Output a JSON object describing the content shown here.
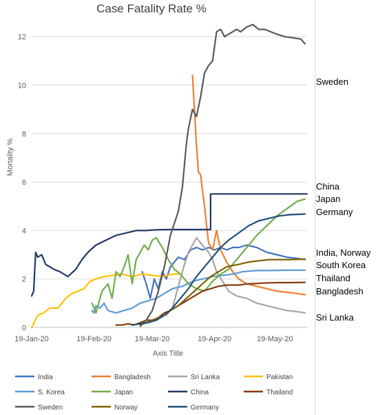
{
  "chart_data": {
    "type": "line",
    "title": "Case Fatality Rate %",
    "xlabel": "Axis Title",
    "ylabel": "Mortality %",
    "xlim": [
      "2020-01-19",
      "2020-06-04"
    ],
    "ylim": [
      0,
      13
    ],
    "yticks": [
      0,
      2,
      4,
      6,
      8,
      10,
      12
    ],
    "xticks": [
      "2020-01-19",
      "2020-02-19",
      "2020-03-19",
      "2020-04-19",
      "2020-05-19"
    ],
    "xtick_labels": [
      "19-Jan-20",
      "19-Feb-20",
      "19-Mar-20",
      "19-Apr-20",
      "19-May-20"
    ],
    "grid": "horizontal",
    "legend_position": "bottom",
    "annotations": [
      "Sweden",
      "China",
      "Japan",
      "Germany",
      "India, Norway",
      "South Korea",
      "Thailand",
      "Bangladesh",
      "Sri Lanka"
    ],
    "series": [
      {
        "name": "India",
        "color": "#4472C4",
        "x": [
          "2020-03-14",
          "2020-03-16",
          "2020-03-18",
          "2020-03-20",
          "2020-03-22",
          "2020-03-24",
          "2020-03-26",
          "2020-03-28",
          "2020-03-30",
          "2020-04-01",
          "2020-04-04",
          "2020-04-07",
          "2020-04-10",
          "2020-04-13",
          "2020-04-16",
          "2020-04-19",
          "2020-04-22",
          "2020-04-25",
          "2020-04-28",
          "2020-05-01",
          "2020-05-05",
          "2020-05-10",
          "2020-05-15",
          "2020-05-20",
          "2020-05-25",
          "2020-05-30",
          "2020-06-03"
        ],
        "y": [
          2.3,
          1.8,
          1.2,
          2.0,
          1.6,
          2.3,
          2.0,
          2.5,
          2.7,
          2.9,
          2.8,
          3.2,
          3.3,
          3.2,
          3.3,
          3.2,
          3.3,
          3.2,
          3.3,
          3.3,
          3.4,
          3.3,
          3.1,
          3.0,
          2.9,
          2.85,
          2.8
        ]
      },
      {
        "name": "Bangladesh",
        "color": "#ED7D31",
        "x": [
          "2020-04-08",
          "2020-04-09",
          "2020-04-10",
          "2020-04-11",
          "2020-04-12",
          "2020-04-14",
          "2020-04-16",
          "2020-04-18",
          "2020-04-20",
          "2020-04-22",
          "2020-04-25",
          "2020-04-28",
          "2020-05-01",
          "2020-05-05",
          "2020-05-10",
          "2020-05-15",
          "2020-05-20",
          "2020-05-25",
          "2020-05-30",
          "2020-06-03"
        ],
        "y": [
          10.4,
          9.0,
          7.5,
          6.4,
          6.3,
          5.0,
          3.5,
          3.2,
          4.0,
          3.2,
          2.7,
          2.3,
          2.0,
          1.8,
          1.7,
          1.6,
          1.5,
          1.45,
          1.4,
          1.35
        ]
      },
      {
        "name": "Sri Lanka",
        "color": "#A5A5A5",
        "x": [
          "2020-03-26",
          "2020-03-29",
          "2020-04-01",
          "2020-04-04",
          "2020-04-06",
          "2020-04-08",
          "2020-04-10",
          "2020-04-12",
          "2020-04-14",
          "2020-04-16",
          "2020-04-18",
          "2020-04-20",
          "2020-04-23",
          "2020-04-26",
          "2020-04-30",
          "2020-05-05",
          "2020-05-10",
          "2020-05-15",
          "2020-05-20",
          "2020-05-25",
          "2020-05-30",
          "2020-06-03"
        ],
        "y": [
          0.5,
          0.8,
          1.7,
          2.6,
          3.1,
          3.4,
          3.7,
          3.5,
          3.3,
          3.1,
          2.8,
          2.3,
          1.9,
          1.5,
          1.3,
          1.2,
          1.0,
          0.9,
          0.8,
          0.7,
          0.65,
          0.6
        ]
      },
      {
        "name": "Pakistan",
        "color": "#FFC000",
        "x": [
          "2020-01-19",
          "2020-01-22",
          "2020-01-25",
          "2020-01-28",
          "2020-02-01",
          "2020-02-05",
          "2020-02-08",
          "2020-02-11",
          "2020-02-14",
          "2020-02-17",
          "2020-02-20",
          "2020-02-24",
          "2020-02-28",
          "2020-03-04",
          "2020-03-09",
          "2020-03-14",
          "2020-03-19",
          "2020-03-24",
          "2020-03-29",
          "2020-04-01"
        ],
        "y": [
          0,
          0.5,
          0.6,
          0.8,
          0.8,
          1.2,
          1.4,
          1.5,
          1.6,
          1.9,
          2.0,
          2.1,
          2.15,
          2.2,
          2.1,
          2.2,
          2.15,
          2.1,
          2.2,
          2.2
        ]
      },
      {
        "name": "S. Korea",
        "color": "#5B9BD5",
        "x": [
          "2020-02-18",
          "2020-02-19",
          "2020-02-20",
          "2020-02-22",
          "2020-02-24",
          "2020-02-26",
          "2020-03-01",
          "2020-03-05",
          "2020-03-09",
          "2020-03-13",
          "2020-03-17",
          "2020-03-21",
          "2020-03-25",
          "2020-03-29",
          "2020-04-03",
          "2020-04-08",
          "2020-04-13",
          "2020-04-18",
          "2020-04-23",
          "2020-04-28",
          "2020-05-03",
          "2020-05-10",
          "2020-05-17",
          "2020-05-24",
          "2020-05-31",
          "2020-06-03"
        ],
        "y": [
          0.7,
          0.6,
          0.9,
          0.8,
          1.0,
          0.7,
          0.6,
          0.7,
          0.8,
          1.0,
          1.1,
          1.2,
          1.4,
          1.6,
          1.7,
          1.9,
          2.0,
          2.1,
          2.15,
          2.2,
          2.3,
          2.35,
          2.35,
          2.36,
          2.36,
          2.36
        ]
      },
      {
        "name": "Japan",
        "color": "#70AD47",
        "x": [
          "2020-02-18",
          "2020-02-20",
          "2020-02-23",
          "2020-02-26",
          "2020-02-28",
          "2020-03-01",
          "2020-03-03",
          "2020-03-05",
          "2020-03-07",
          "2020-03-09",
          "2020-03-11",
          "2020-03-13",
          "2020-03-15",
          "2020-03-17",
          "2020-03-19",
          "2020-03-21",
          "2020-03-24",
          "2020-03-27",
          "2020-03-30",
          "2020-04-02",
          "2020-04-06",
          "2020-04-10",
          "2020-04-14",
          "2020-04-18",
          "2020-04-22",
          "2020-04-26",
          "2020-04-30",
          "2020-05-05",
          "2020-05-10",
          "2020-05-15",
          "2020-05-20",
          "2020-05-25",
          "2020-05-30",
          "2020-06-03"
        ],
        "y": [
          1.0,
          0.6,
          1.5,
          1.8,
          1.2,
          2.3,
          2.1,
          2.5,
          3.0,
          1.8,
          2.8,
          3.1,
          3.4,
          3.2,
          3.6,
          3.7,
          3.3,
          2.8,
          2.4,
          2.2,
          1.8,
          1.6,
          1.5,
          1.9,
          2.2,
          2.4,
          2.8,
          3.3,
          3.8,
          4.2,
          4.6,
          4.9,
          5.2,
          5.3
        ]
      },
      {
        "name": "China",
        "color": "#203864",
        "x": [
          "2020-01-19",
          "2020-01-20",
          "2020-01-21",
          "2020-01-22",
          "2020-01-24",
          "2020-01-26",
          "2020-01-28",
          "2020-01-30",
          "2020-02-02",
          "2020-02-06",
          "2020-02-10",
          "2020-02-13",
          "2020-02-16",
          "2020-02-20",
          "2020-02-25",
          "2020-03-01",
          "2020-03-06",
          "2020-03-11",
          "2020-03-16",
          "2020-03-21",
          "2020-03-26",
          "2020-04-01",
          "2020-04-06",
          "2020-04-11",
          "2020-04-16",
          "2020-04-17",
          "2020-04-17",
          "2020-04-25",
          "2020-05-05",
          "2020-05-15",
          "2020-05-25",
          "2020-06-04"
        ],
        "y": [
          1.3,
          1.5,
          3.1,
          2.9,
          3.0,
          2.6,
          2.5,
          2.4,
          2.3,
          2.1,
          2.4,
          2.8,
          3.1,
          3.4,
          3.6,
          3.8,
          3.9,
          4.0,
          4.0,
          4.03,
          4.04,
          4.04,
          4.04,
          4.04,
          4.04,
          4.04,
          5.51,
          5.51,
          5.51,
          5.51,
          5.51,
          5.51
        ]
      },
      {
        "name": "Thailand",
        "color": "#843C0C",
        "x": [
          "2020-03-01",
          "2020-03-04",
          "2020-03-07",
          "2020-03-10",
          "2020-03-13",
          "2020-03-16",
          "2020-03-19",
          "2020-03-22",
          "2020-03-25",
          "2020-03-28",
          "2020-04-01",
          "2020-04-05",
          "2020-04-09",
          "2020-04-13",
          "2020-04-17",
          "2020-04-21",
          "2020-04-25",
          "2020-05-01",
          "2020-05-06",
          "2020-05-11",
          "2020-05-16",
          "2020-05-21",
          "2020-05-26",
          "2020-06-03"
        ],
        "y": [
          0.1,
          0.1,
          0.15,
          0.1,
          0.2,
          0.3,
          0.3,
          0.4,
          0.6,
          0.7,
          0.9,
          1.1,
          1.3,
          1.5,
          1.6,
          1.7,
          1.75,
          1.75,
          1.8,
          1.82,
          1.84,
          1.85,
          1.85,
          1.86
        ]
      },
      {
        "name": "Sweden",
        "color": "#595959",
        "x": [
          "2020-03-13",
          "2020-03-16",
          "2020-03-19",
          "2020-03-22",
          "2020-03-25",
          "2020-03-28",
          "2020-04-01",
          "2020-04-03",
          "2020-04-05",
          "2020-04-06",
          "2020-04-08",
          "2020-04-10",
          "2020-04-12",
          "2020-04-14",
          "2020-04-16",
          "2020-04-18",
          "2020-04-20",
          "2020-04-22",
          "2020-04-24",
          "2020-04-26",
          "2020-04-28",
          "2020-04-30",
          "2020-05-02",
          "2020-05-05",
          "2020-05-08",
          "2020-05-11",
          "2020-05-14",
          "2020-05-17",
          "2020-05-20",
          "2020-05-24",
          "2020-05-28",
          "2020-06-01",
          "2020-06-03"
        ],
        "y": [
          0.05,
          0.3,
          0.7,
          1.5,
          2.5,
          3.8,
          4.8,
          5.8,
          7.6,
          8.2,
          9.0,
          8.7,
          9.5,
          10.5,
          10.8,
          11.0,
          12.2,
          12.3,
          12.0,
          12.1,
          12.2,
          12.3,
          12.2,
          12.4,
          12.5,
          12.3,
          12.3,
          12.2,
          12.1,
          12.0,
          11.95,
          11.9,
          11.7
        ]
      },
      {
        "name": "Norway",
        "color": "#7F6000",
        "x": [
          "2020-03-13",
          "2020-03-16",
          "2020-03-19",
          "2020-03-22",
          "2020-03-25",
          "2020-03-28",
          "2020-04-01",
          "2020-04-05",
          "2020-04-09",
          "2020-04-13",
          "2020-04-17",
          "2020-04-21",
          "2020-04-25",
          "2020-05-01",
          "2020-05-06",
          "2020-05-11",
          "2020-05-16",
          "2020-05-21",
          "2020-05-26",
          "2020-06-03"
        ],
        "y": [
          0.1,
          0.2,
          0.3,
          0.4,
          0.5,
          0.7,
          0.9,
          1.2,
          1.5,
          1.8,
          2.1,
          2.3,
          2.5,
          2.6,
          2.7,
          2.75,
          2.8,
          2.8,
          2.8,
          2.82
        ]
      },
      {
        "name": "Germany",
        "color": "#1F4E79",
        "x": [
          "2020-03-09",
          "2020-03-13",
          "2020-03-17",
          "2020-03-21",
          "2020-03-25",
          "2020-03-29",
          "2020-04-02",
          "2020-04-06",
          "2020-04-10",
          "2020-04-14",
          "2020-04-18",
          "2020-04-22",
          "2020-04-26",
          "2020-05-01",
          "2020-05-06",
          "2020-05-11",
          "2020-05-16",
          "2020-05-21",
          "2020-05-26",
          "2020-06-03"
        ],
        "y": [
          0.1,
          0.15,
          0.2,
          0.3,
          0.5,
          0.8,
          1.2,
          1.6,
          2.1,
          2.5,
          2.9,
          3.3,
          3.6,
          3.9,
          4.2,
          4.4,
          4.5,
          4.6,
          4.65,
          4.68
        ]
      }
    ]
  }
}
